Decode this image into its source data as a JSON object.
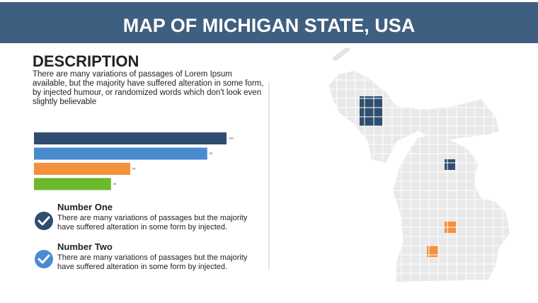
{
  "header": {
    "title": "MAP OF MICHIGAN STATE, USA"
  },
  "description": {
    "heading": "DESCRIPTION",
    "text": [
      "There are many variations of passages of Lorem Ipsum available, but the majority have suffered alteration in some form, by injected humour, or randomized words which don't look even",
      "slightly believable"
    ]
  },
  "chart_data": {
    "type": "bar",
    "orientation": "horizontal",
    "values": [
      100,
      90,
      50,
      40
    ],
    "colors": [
      "#2f4e6f",
      "#4a8bd0",
      "#f5903c",
      "#6cb82c"
    ]
  },
  "items": [
    {
      "title": "Number One",
      "text": "There are many variations of passages but the majority have  suffered alteration in some form by injected.",
      "color": "#2f4e6f"
    },
    {
      "title": "Number Two",
      "text": "There are many variations of passages but the majority have  suffered alteration in some form by injected.",
      "color": "#4a8bd0"
    }
  ]
}
